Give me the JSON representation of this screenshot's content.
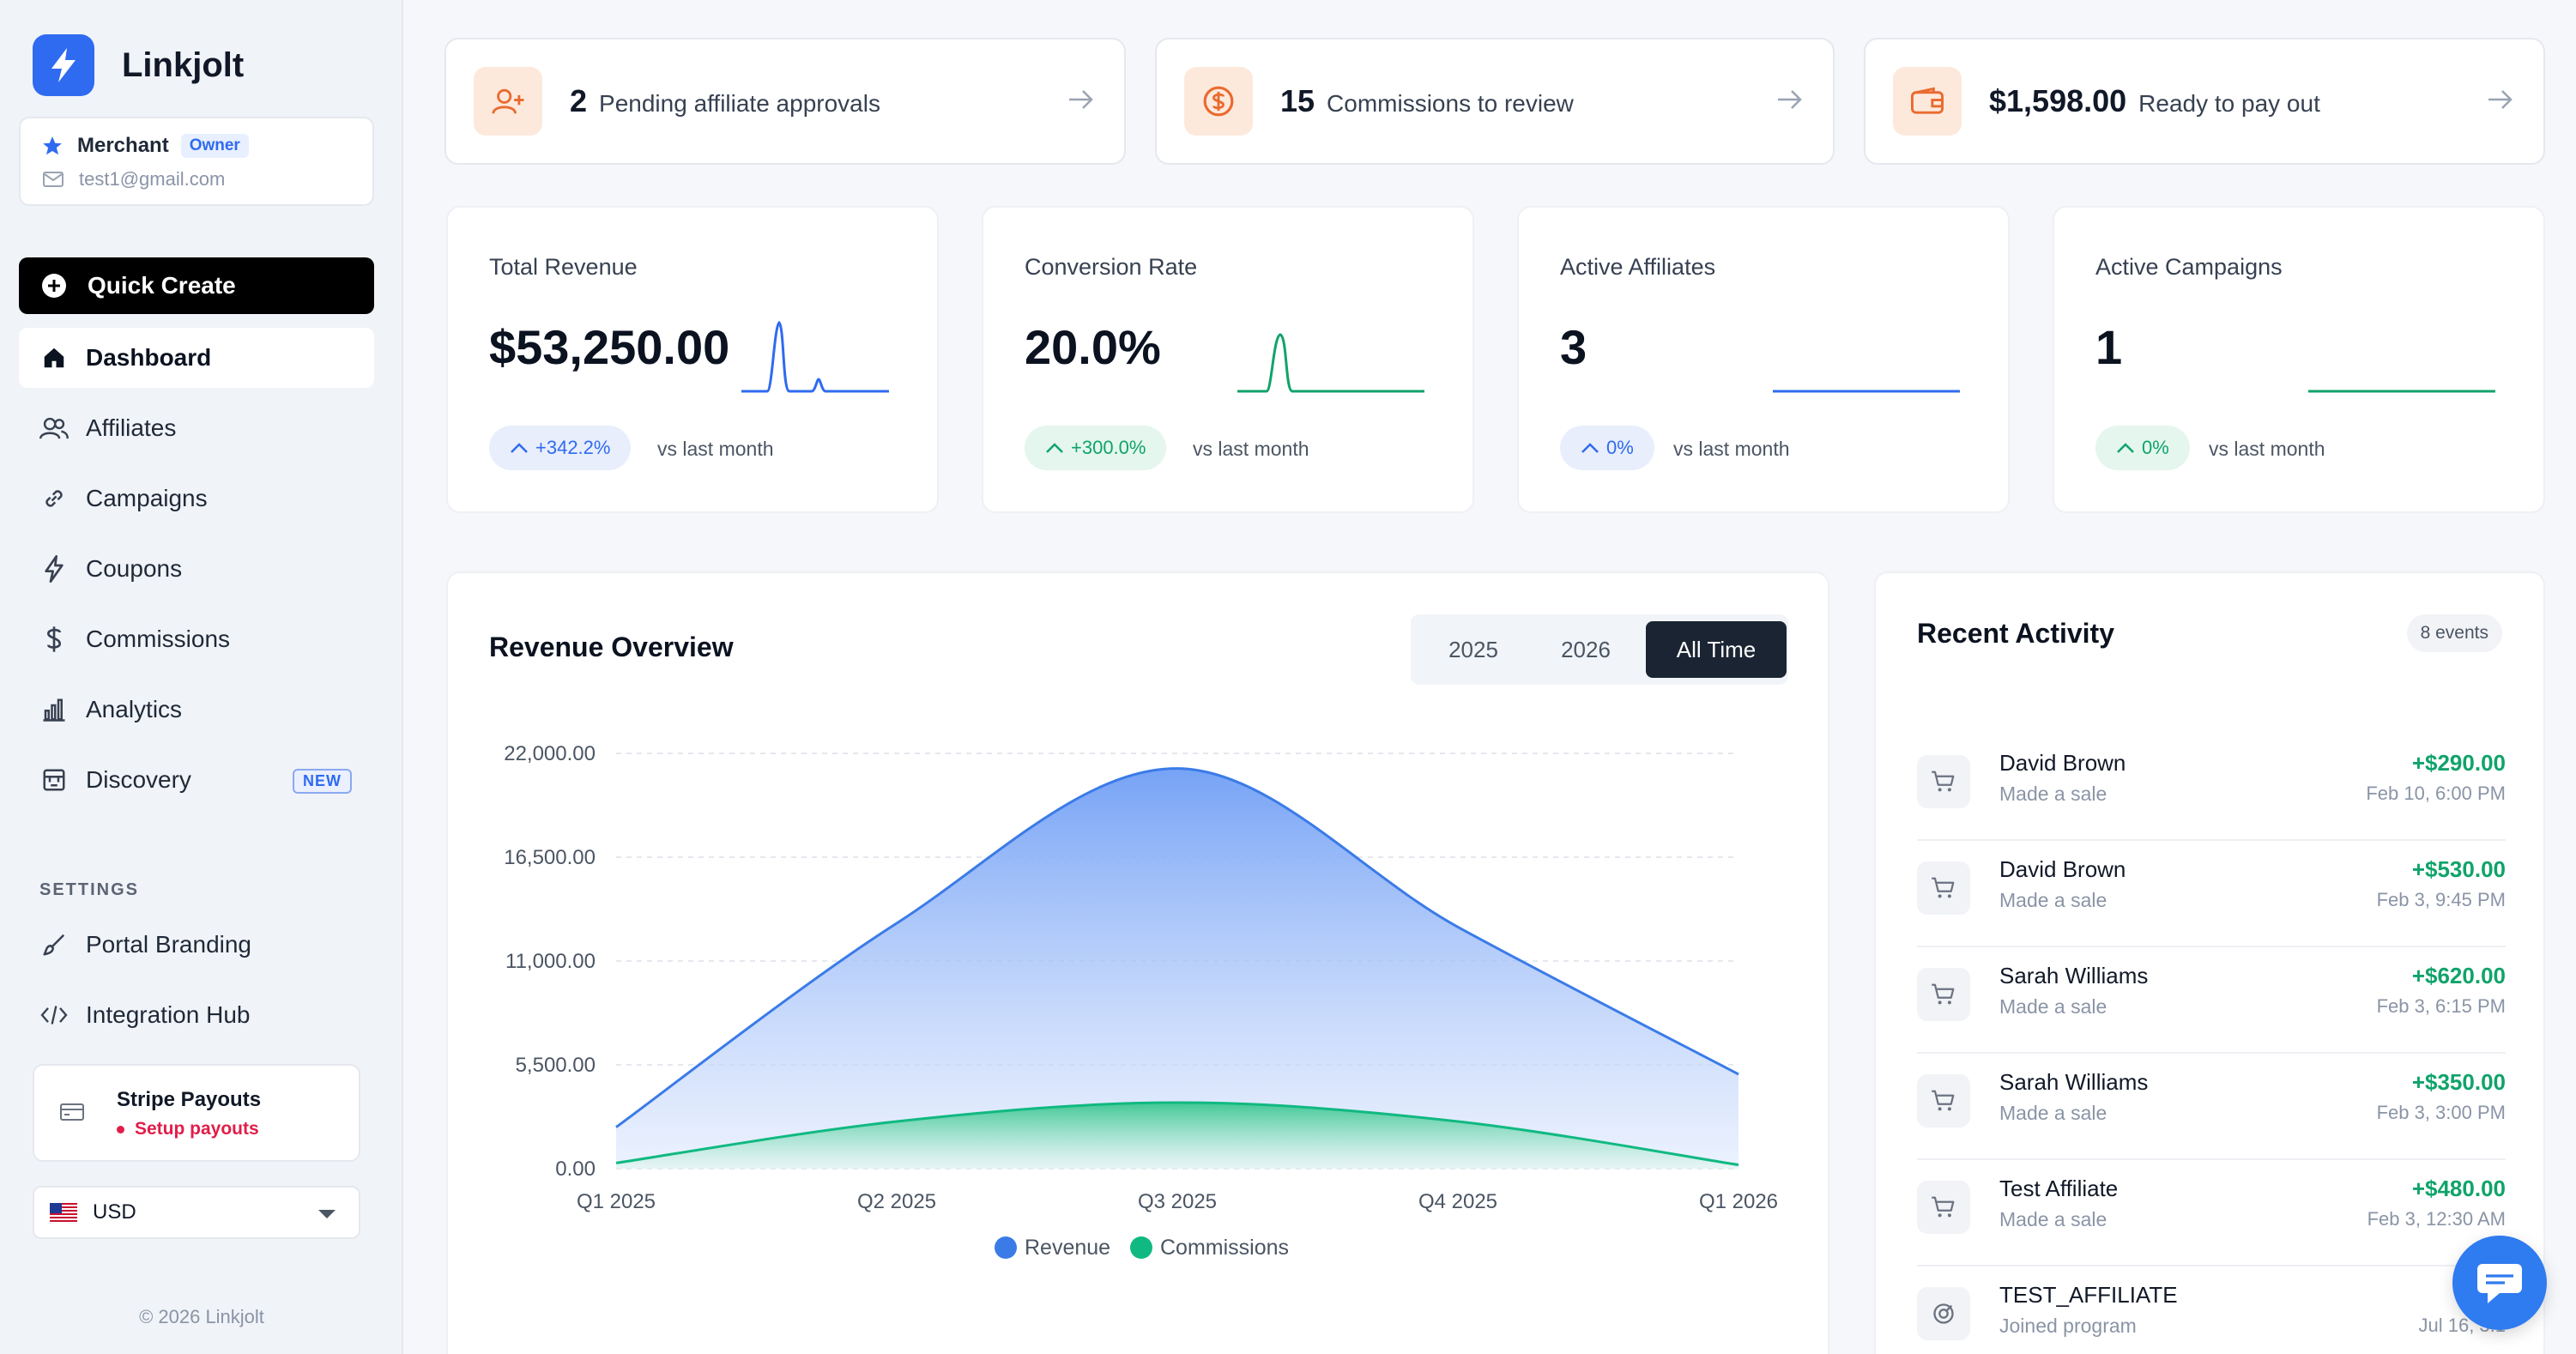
{
  "brand": {
    "name": "Linkjolt"
  },
  "account": {
    "role": "Merchant",
    "badge": "Owner",
    "email": "test1@gmail.com"
  },
  "sidebar": {
    "quick_create": "Quick Create",
    "items": [
      {
        "label": "Dashboard",
        "icon": "home-icon",
        "active": true
      },
      {
        "label": "Affiliates",
        "icon": "users-icon"
      },
      {
        "label": "Campaigns",
        "icon": "link-icon"
      },
      {
        "label": "Coupons",
        "icon": "lightning-icon"
      },
      {
        "label": "Commissions",
        "icon": "dollar-icon"
      },
      {
        "label": "Analytics",
        "icon": "bar-chart-icon"
      },
      {
        "label": "Discovery",
        "icon": "store-icon",
        "badge": "NEW"
      }
    ],
    "settings_heading": "SETTINGS",
    "settings_items": [
      {
        "label": "Portal Branding",
        "icon": "brush-icon"
      },
      {
        "label": "Integration Hub",
        "icon": "code-icon"
      }
    ],
    "stripe": {
      "title": "Stripe Payouts",
      "status": "Setup payouts"
    },
    "currency": {
      "code": "USD"
    },
    "copyright": "© 2026 Linkjolt"
  },
  "alerts": [
    {
      "value": "2",
      "text": "Pending affiliate approvals",
      "icon": "user-plus-icon"
    },
    {
      "value": "15",
      "text": "Commissions to review",
      "icon": "coin-icon"
    },
    {
      "value": "$1,598.00",
      "text": "Ready to pay out",
      "icon": "wallet-icon"
    }
  ],
  "stats": [
    {
      "label": "Total Revenue",
      "value": "$53,250.00",
      "change": "+342.2%",
      "vs": "vs last month",
      "color": "#2f6bf0"
    },
    {
      "label": "Conversion Rate",
      "value": "20.0%",
      "change": "+300.0%",
      "vs": "vs last month",
      "color": "#10a36b"
    },
    {
      "label": "Active Affiliates",
      "value": "3",
      "change": "0%",
      "vs": "vs last month",
      "color": "#2f6bf0"
    },
    {
      "label": "Active Campaigns",
      "value": "1",
      "change": "0%",
      "vs": "vs last month",
      "color": "#10a36b"
    }
  ],
  "revenue_overview": {
    "title": "Revenue Overview",
    "filters": [
      "2025",
      "2026",
      "All Time"
    ],
    "active_filter": "All Time"
  },
  "chart_data": {
    "type": "area",
    "x": [
      "Q1 2025",
      "Q2 2025",
      "Q3 2025",
      "Q4 2025",
      "Q1 2026"
    ],
    "ylim": [
      0,
      22000
    ],
    "yticks": [
      "22,000.00",
      "16,500.00",
      "11,000.00",
      "5,500.00",
      "0.00"
    ],
    "series": [
      {
        "name": "Revenue",
        "color": "#3b7be8",
        "values": [
          2200,
          13000,
          21200,
          12800,
          5000
        ]
      },
      {
        "name": "Commissions",
        "color": "#10b981",
        "values": [
          300,
          2500,
          3500,
          2500,
          200
        ]
      }
    ],
    "legend": "bottom-center"
  },
  "activity": {
    "title": "Recent Activity",
    "badge": "8 events",
    "items": [
      {
        "name": "David Brown",
        "desc": "Made a sale",
        "amount": "+$290.00",
        "time": "Feb 10, 6:00 PM",
        "icon": "cart-icon"
      },
      {
        "name": "David Brown",
        "desc": "Made a sale",
        "amount": "+$530.00",
        "time": "Feb 3, 9:45 PM",
        "icon": "cart-icon"
      },
      {
        "name": "Sarah Williams",
        "desc": "Made a sale",
        "amount": "+$620.00",
        "time": "Feb 3, 6:15 PM",
        "icon": "cart-icon"
      },
      {
        "name": "Sarah Williams",
        "desc": "Made a sale",
        "amount": "+$350.00",
        "time": "Feb 3, 3:00 PM",
        "icon": "cart-icon"
      },
      {
        "name": "Test Affiliate",
        "desc": "Made a sale",
        "amount": "+$480.00",
        "time": "Feb 3, 12:30 AM",
        "icon": "cart-icon"
      },
      {
        "name": "TEST_AFFILIATE",
        "desc": "Joined program",
        "amount": "",
        "time": "Jul 16, 3:1",
        "icon": "user-joined-icon"
      }
    ]
  }
}
